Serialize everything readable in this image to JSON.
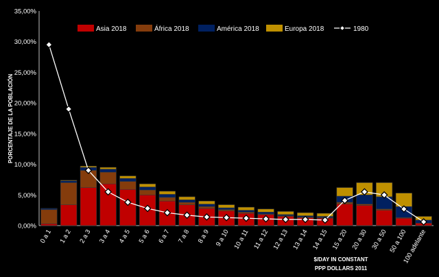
{
  "chart_data": {
    "type": "bar",
    "stacked": true,
    "ylabel": "PORCENTAJE DE LA POBLACIÓN",
    "xlabel_line1": "$/DAY IN CONSTANT",
    "xlabel_line2": "PPP DOLLARS 2011",
    "ylim": [
      0,
      35
    ],
    "yticks": [
      "0,00%",
      "5,00%",
      "10,00%",
      "15,00%",
      "20,00%",
      "25,00%",
      "30,00%",
      "35,00%"
    ],
    "yticks_values": [
      0,
      5,
      10,
      15,
      20,
      25,
      30,
      35
    ],
    "legend_position": "top",
    "grid": false,
    "categories": [
      "0 a 1",
      "1 a 2",
      "2 a 3",
      "3 a 4",
      "4 a 5",
      "5 a 6",
      "6 a 7",
      "7 a 8",
      "8 a 9",
      "9 a 10",
      "10 a 11",
      "11 a 12",
      "12 a 13",
      "13 a 14",
      "14 a 15",
      "15 a 20",
      "20 a 30",
      "30 a 50",
      "50 a 100",
      "100 adelante"
    ],
    "series": [
      {
        "name": "Asia 2018",
        "kind": "bar",
        "color": "#c00000",
        "values": [
          0.3,
          3.4,
          6.2,
          6.8,
          5.9,
          5.0,
          4.0,
          3.4,
          2.8,
          2.4,
          2.0,
          1.8,
          1.5,
          1.3,
          1.2,
          3.5,
          3.3,
          2.5,
          1.2,
          0.4
        ]
      },
      {
        "name": "África 2018",
        "kind": "bar",
        "color": "#843c0c",
        "values": [
          2.3,
          3.6,
          2.8,
          1.9,
          1.3,
          0.8,
          0.6,
          0.4,
          0.3,
          0.2,
          0.2,
          0.1,
          0.1,
          0.1,
          0.1,
          0.3,
          0.2,
          0.2,
          0.1,
          0.0
        ]
      },
      {
        "name": "América 2018",
        "kind": "bar",
        "color": "#002060",
        "values": [
          0.2,
          0.3,
          0.5,
          0.5,
          0.5,
          0.5,
          0.5,
          0.4,
          0.4,
          0.3,
          0.3,
          0.3,
          0.2,
          0.2,
          0.2,
          1.0,
          1.5,
          2.0,
          1.8,
          0.5
        ]
      },
      {
        "name": "Europa 2018",
        "kind": "bar",
        "color": "#bf9000",
        "values": [
          0.0,
          0.1,
          0.2,
          0.3,
          0.4,
          0.5,
          0.5,
          0.5,
          0.5,
          0.5,
          0.5,
          0.5,
          0.5,
          0.5,
          0.5,
          1.4,
          2.0,
          2.3,
          2.2,
          0.6
        ]
      },
      {
        "name": "1980",
        "kind": "line",
        "color": "#ffffff",
        "values": [
          29.5,
          19.0,
          9.0,
          5.5,
          3.8,
          2.8,
          2.1,
          1.7,
          1.4,
          1.3,
          1.2,
          1.1,
          1.0,
          1.0,
          0.9,
          4.1,
          5.5,
          5.0,
          2.7,
          0.6
        ]
      }
    ]
  }
}
